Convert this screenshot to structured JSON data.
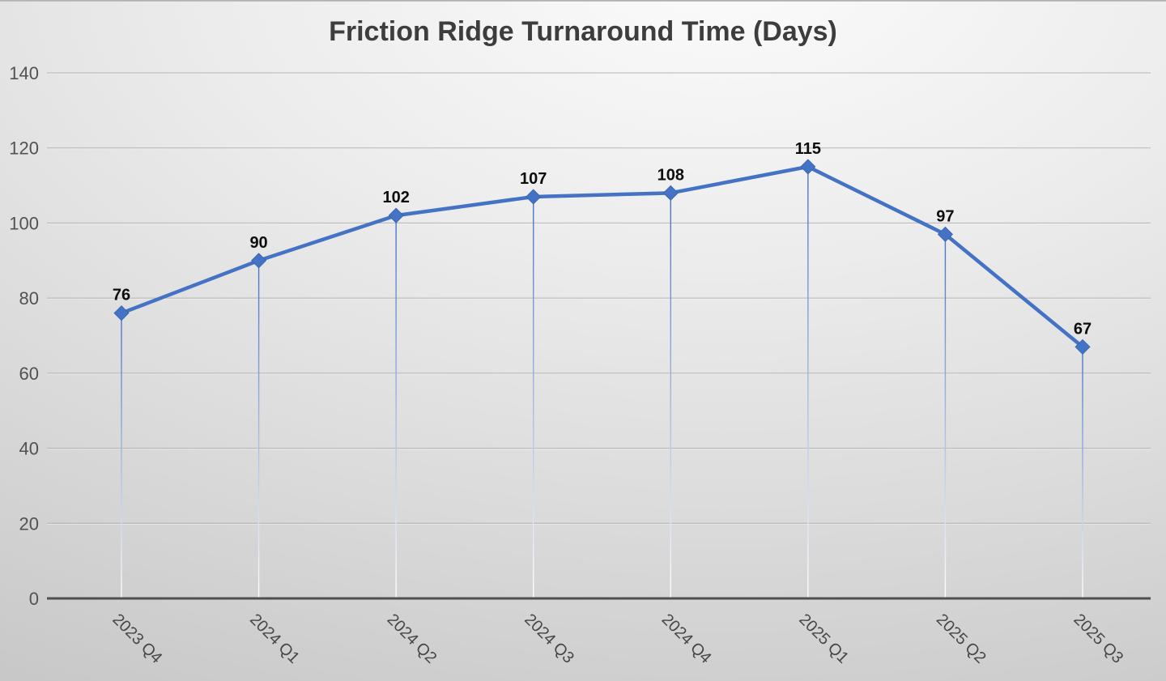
{
  "chart_data": {
    "type": "line",
    "title": "Friction Ridge Turnaround Time (Days)",
    "categories": [
      "2023 Q4",
      "2024 Q1",
      "2024 Q2",
      "2024 Q3",
      "2024 Q4",
      "2025 Q1",
      "2025 Q2",
      "2025 Q3"
    ],
    "values": [
      76,
      90,
      102,
      107,
      108,
      115,
      97,
      67
    ],
    "data_labels_shown": true,
    "xlabel": "",
    "ylabel": "",
    "ylim": [
      0,
      140
    ],
    "yticks": [
      0,
      20,
      40,
      60,
      80,
      100,
      120,
      140
    ],
    "grid": "horizontal",
    "legend": "none",
    "marker": "diamond",
    "drop_lines": true,
    "x_label_rotation_deg": 45,
    "colors": {
      "line": "#4472C4",
      "marker": "#4472C4",
      "drop_line_top": "#4472C4",
      "drop_line_bottom": "#ffffff",
      "gridline": "#a6a6a6",
      "gridline_highlight": "#f5f5f5",
      "axis_line": "#4f4f4f",
      "tick_label": "#525252",
      "x_label": "#474747",
      "data_label": "#0d0d0d",
      "title": "#3d3d3d"
    }
  }
}
